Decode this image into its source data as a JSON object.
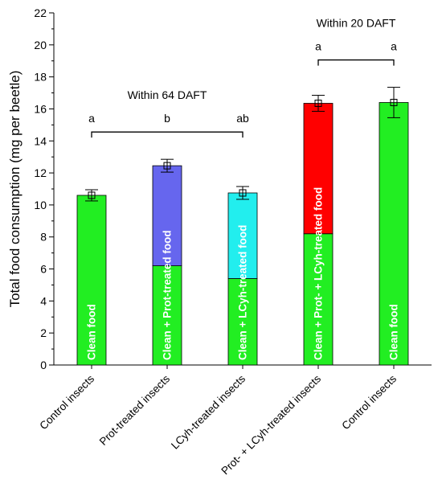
{
  "chart_data": {
    "type": "bar",
    "stacked": true,
    "ylabel": "Total food consumption (mg per beetle)",
    "ylim": [
      0,
      22
    ],
    "yticks": [
      0,
      2,
      4,
      6,
      8,
      10,
      12,
      14,
      16,
      18,
      20,
      22
    ],
    "grid": false,
    "categories": [
      "Control insects",
      "Prot-treated insects",
      "LCyh-treated insects",
      "Prot- + LCyh-treated insects",
      "Control insects"
    ],
    "bars": [
      {
        "segments": [
          {
            "value": 10.6,
            "color": "#22ee22",
            "label": "Clean food"
          }
        ],
        "total": 10.6,
        "error": 0.35,
        "letter": "a"
      },
      {
        "segments": [
          {
            "value": 6.2,
            "color": "#22ee22",
            "label": ""
          },
          {
            "value": 6.25,
            "color": "#6666ee",
            "label": ""
          }
        ],
        "span_label": "Clean + Prot-treated food",
        "total": 12.45,
        "error": 0.4,
        "letter": "b"
      },
      {
        "segments": [
          {
            "value": 5.4,
            "color": "#22ee22",
            "label": ""
          },
          {
            "value": 5.35,
            "color": "#22eeee",
            "label": ""
          }
        ],
        "span_label": "Clean + LCyh-treated food",
        "total": 10.75,
        "error": 0.4,
        "letter": "ab"
      },
      {
        "segments": [
          {
            "value": 8.2,
            "color": "#22ee22",
            "label": ""
          },
          {
            "value": 8.15,
            "color": "#ff0000",
            "label": ""
          }
        ],
        "span_label": "Clean + Prot- + LCyh-treated food",
        "total": 16.35,
        "error": 0.5,
        "letter": "a"
      },
      {
        "segments": [
          {
            "value": 16.4,
            "color": "#22ee22",
            "label": "Clean food"
          }
        ],
        "total": 16.4,
        "error": 0.95,
        "letter": "a"
      }
    ],
    "groups": [
      {
        "label": "Within 64 DAFT",
        "from": 0,
        "to": 2
      },
      {
        "label": "Within 20 DAFT",
        "from": 3,
        "to": 4
      }
    ]
  }
}
